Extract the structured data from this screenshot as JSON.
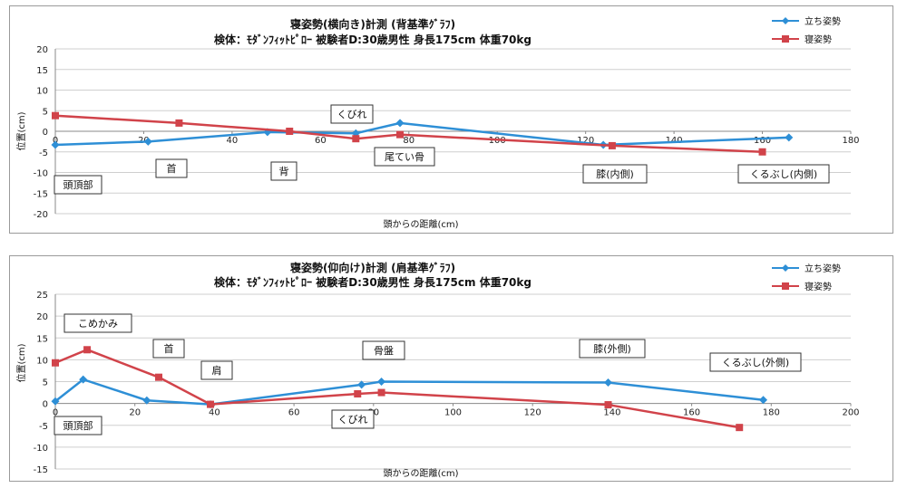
{
  "colors": {
    "standing": "#2e8fd6",
    "lying": "#d1434a",
    "grid": "#cfcfcf",
    "axis": "#888888"
  },
  "charts": [
    {
      "title_line1": "寝姿勢(横向き)計測  (背基準ｸﾞﾗﾌ)",
      "title_line2": "検体：ﾓﾀﾞﾝﾌｨｯﾄﾋﾟﾛｰ 被験者D:30歳男性 身長175cm 体重70kg",
      "ylabel": "位置(cm)",
      "xlabel": "頭からの距離(cm)",
      "legend": [
        "立ち姿勢",
        "寝姿勢"
      ],
      "annotations": [
        {
          "text": "頭頂部"
        },
        {
          "text": "首"
        },
        {
          "text": "背"
        },
        {
          "text": "くびれ"
        },
        {
          "text": "尾てい骨"
        },
        {
          "text": "膝(内側)"
        },
        {
          "text": "くるぶし(内側)"
        }
      ]
    },
    {
      "title_line1": "寝姿勢(仰向け)計測  (肩基準ｸﾞﾗﾌ)",
      "title_line2": "検体：ﾓﾀﾞﾝﾌｨｯﾄﾋﾟﾛｰ 被験者D:30歳男性 身長175cm 体重70kg",
      "ylabel": "位置(cm)",
      "xlabel": "頭からの距離(cm)",
      "legend": [
        "立ち姿勢",
        "寝姿勢"
      ],
      "annotations": [
        {
          "text": "こめかみ"
        },
        {
          "text": "頭頂部"
        },
        {
          "text": "首"
        },
        {
          "text": "肩"
        },
        {
          "text": "骨盤"
        },
        {
          "text": "くびれ"
        },
        {
          "text": "膝(外側)"
        },
        {
          "text": "くるぶし(外側)"
        }
      ]
    }
  ],
  "chart_data": [
    {
      "type": "line",
      "title": "寝姿勢(横向き)計測  (背基準ｸﾞﾗﾌ)",
      "xlabel": "頭からの距離(cm)",
      "ylabel": "位置(cm)",
      "xlim": [
        0,
        180
      ],
      "ylim": [
        -20,
        20
      ],
      "xticks": [
        0,
        20,
        40,
        60,
        80,
        100,
        120,
        140,
        160,
        180
      ],
      "yticks": [
        -20,
        -15,
        -10,
        -5,
        0,
        5,
        10,
        15,
        20
      ],
      "grid": true,
      "legend_position": "top-right",
      "series": [
        {
          "name": "立ち姿勢",
          "color": "#2e8fd6",
          "marker": "diamond",
          "x": [
            0,
            21,
            48,
            68,
            78,
            124,
            166
          ],
          "y": [
            -3.3,
            -2.5,
            -0.2,
            -0.5,
            2.0,
            -3.3,
            -1.5
          ]
        },
        {
          "name": "寝姿勢",
          "color": "#d1434a",
          "marker": "square",
          "x": [
            0,
            28,
            53,
            68,
            78,
            126,
            160
          ],
          "y": [
            3.8,
            2.0,
            0,
            -1.8,
            -0.8,
            -3.5,
            -5.0
          ]
        }
      ]
    },
    {
      "type": "line",
      "title": "寝姿勢(仰向け)計測  (肩基準ｸﾞﾗﾌ)",
      "xlabel": "頭からの距離(cm)",
      "ylabel": "位置(cm)",
      "xlim": [
        0,
        200
      ],
      "ylim": [
        -15,
        25
      ],
      "xticks": [
        0,
        20,
        40,
        60,
        80,
        100,
        120,
        140,
        160,
        180,
        200
      ],
      "yticks": [
        -15,
        -10,
        -5,
        0,
        5,
        10,
        15,
        20,
        25
      ],
      "grid": true,
      "legend_position": "top-right",
      "series": [
        {
          "name": "立ち姿勢",
          "color": "#2e8fd6",
          "marker": "diamond",
          "x": [
            0,
            7,
            23,
            39,
            77,
            82,
            139,
            178
          ],
          "y": [
            0.5,
            5.5,
            0.7,
            -0.2,
            4.3,
            5.0,
            4.8,
            0.8
          ]
        },
        {
          "name": "寝姿勢",
          "color": "#d1434a",
          "marker": "square",
          "x": [
            0,
            8,
            26,
            39,
            76,
            82,
            139,
            172
          ],
          "y": [
            9.3,
            12.3,
            6.0,
            -0.2,
            2.2,
            2.5,
            -0.3,
            -5.5
          ]
        }
      ]
    }
  ]
}
